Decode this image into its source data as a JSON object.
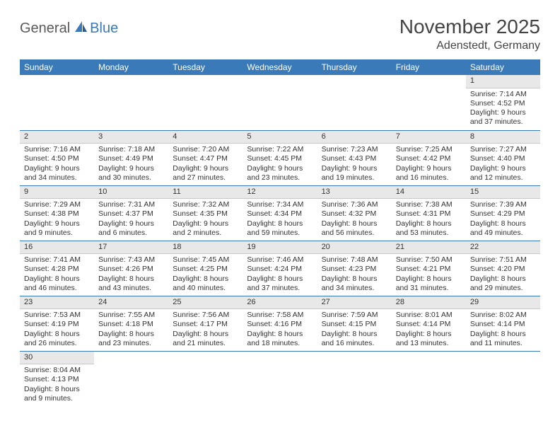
{
  "logo": {
    "text1": "General",
    "text2": "Blue"
  },
  "header": {
    "title": "November 2025",
    "location": "Adenstedt, Germany"
  },
  "colors": {
    "header_bg": "#3a7ab8",
    "header_fg": "#ffffff",
    "daynum_bg": "#e8e8e8",
    "row_border": "#3a7ab8",
    "body_text": "#333333",
    "logo_gray": "#5a5a5a",
    "logo_blue": "#3a7ab8",
    "page_bg": "#ffffff"
  },
  "typography": {
    "title_fontsize": 28,
    "location_fontsize": 16,
    "dayheader_fontsize": 12,
    "cell_fontsize": 10.5,
    "daynum_fontsize": 11
  },
  "day_names": [
    "Sunday",
    "Monday",
    "Tuesday",
    "Wednesday",
    "Thursday",
    "Friday",
    "Saturday"
  ],
  "weeks": [
    [
      null,
      null,
      null,
      null,
      null,
      null,
      {
        "n": "1",
        "sunrise": "Sunrise: 7:14 AM",
        "sunset": "Sunset: 4:52 PM",
        "daylight": "Daylight: 9 hours and 37 minutes."
      }
    ],
    [
      {
        "n": "2",
        "sunrise": "Sunrise: 7:16 AM",
        "sunset": "Sunset: 4:50 PM",
        "daylight": "Daylight: 9 hours and 34 minutes."
      },
      {
        "n": "3",
        "sunrise": "Sunrise: 7:18 AM",
        "sunset": "Sunset: 4:49 PM",
        "daylight": "Daylight: 9 hours and 30 minutes."
      },
      {
        "n": "4",
        "sunrise": "Sunrise: 7:20 AM",
        "sunset": "Sunset: 4:47 PM",
        "daylight": "Daylight: 9 hours and 27 minutes."
      },
      {
        "n": "5",
        "sunrise": "Sunrise: 7:22 AM",
        "sunset": "Sunset: 4:45 PM",
        "daylight": "Daylight: 9 hours and 23 minutes."
      },
      {
        "n": "6",
        "sunrise": "Sunrise: 7:23 AM",
        "sunset": "Sunset: 4:43 PM",
        "daylight": "Daylight: 9 hours and 19 minutes."
      },
      {
        "n": "7",
        "sunrise": "Sunrise: 7:25 AM",
        "sunset": "Sunset: 4:42 PM",
        "daylight": "Daylight: 9 hours and 16 minutes."
      },
      {
        "n": "8",
        "sunrise": "Sunrise: 7:27 AM",
        "sunset": "Sunset: 4:40 PM",
        "daylight": "Daylight: 9 hours and 12 minutes."
      }
    ],
    [
      {
        "n": "9",
        "sunrise": "Sunrise: 7:29 AM",
        "sunset": "Sunset: 4:38 PM",
        "daylight": "Daylight: 9 hours and 9 minutes."
      },
      {
        "n": "10",
        "sunrise": "Sunrise: 7:31 AM",
        "sunset": "Sunset: 4:37 PM",
        "daylight": "Daylight: 9 hours and 6 minutes."
      },
      {
        "n": "11",
        "sunrise": "Sunrise: 7:32 AM",
        "sunset": "Sunset: 4:35 PM",
        "daylight": "Daylight: 9 hours and 2 minutes."
      },
      {
        "n": "12",
        "sunrise": "Sunrise: 7:34 AM",
        "sunset": "Sunset: 4:34 PM",
        "daylight": "Daylight: 8 hours and 59 minutes."
      },
      {
        "n": "13",
        "sunrise": "Sunrise: 7:36 AM",
        "sunset": "Sunset: 4:32 PM",
        "daylight": "Daylight: 8 hours and 56 minutes."
      },
      {
        "n": "14",
        "sunrise": "Sunrise: 7:38 AM",
        "sunset": "Sunset: 4:31 PM",
        "daylight": "Daylight: 8 hours and 53 minutes."
      },
      {
        "n": "15",
        "sunrise": "Sunrise: 7:39 AM",
        "sunset": "Sunset: 4:29 PM",
        "daylight": "Daylight: 8 hours and 49 minutes."
      }
    ],
    [
      {
        "n": "16",
        "sunrise": "Sunrise: 7:41 AM",
        "sunset": "Sunset: 4:28 PM",
        "daylight": "Daylight: 8 hours and 46 minutes."
      },
      {
        "n": "17",
        "sunrise": "Sunrise: 7:43 AM",
        "sunset": "Sunset: 4:26 PM",
        "daylight": "Daylight: 8 hours and 43 minutes."
      },
      {
        "n": "18",
        "sunrise": "Sunrise: 7:45 AM",
        "sunset": "Sunset: 4:25 PM",
        "daylight": "Daylight: 8 hours and 40 minutes."
      },
      {
        "n": "19",
        "sunrise": "Sunrise: 7:46 AM",
        "sunset": "Sunset: 4:24 PM",
        "daylight": "Daylight: 8 hours and 37 minutes."
      },
      {
        "n": "20",
        "sunrise": "Sunrise: 7:48 AM",
        "sunset": "Sunset: 4:23 PM",
        "daylight": "Daylight: 8 hours and 34 minutes."
      },
      {
        "n": "21",
        "sunrise": "Sunrise: 7:50 AM",
        "sunset": "Sunset: 4:21 PM",
        "daylight": "Daylight: 8 hours and 31 minutes."
      },
      {
        "n": "22",
        "sunrise": "Sunrise: 7:51 AM",
        "sunset": "Sunset: 4:20 PM",
        "daylight": "Daylight: 8 hours and 29 minutes."
      }
    ],
    [
      {
        "n": "23",
        "sunrise": "Sunrise: 7:53 AM",
        "sunset": "Sunset: 4:19 PM",
        "daylight": "Daylight: 8 hours and 26 minutes."
      },
      {
        "n": "24",
        "sunrise": "Sunrise: 7:55 AM",
        "sunset": "Sunset: 4:18 PM",
        "daylight": "Daylight: 8 hours and 23 minutes."
      },
      {
        "n": "25",
        "sunrise": "Sunrise: 7:56 AM",
        "sunset": "Sunset: 4:17 PM",
        "daylight": "Daylight: 8 hours and 21 minutes."
      },
      {
        "n": "26",
        "sunrise": "Sunrise: 7:58 AM",
        "sunset": "Sunset: 4:16 PM",
        "daylight": "Daylight: 8 hours and 18 minutes."
      },
      {
        "n": "27",
        "sunrise": "Sunrise: 7:59 AM",
        "sunset": "Sunset: 4:15 PM",
        "daylight": "Daylight: 8 hours and 16 minutes."
      },
      {
        "n": "28",
        "sunrise": "Sunrise: 8:01 AM",
        "sunset": "Sunset: 4:14 PM",
        "daylight": "Daylight: 8 hours and 13 minutes."
      },
      {
        "n": "29",
        "sunrise": "Sunrise: 8:02 AM",
        "sunset": "Sunset: 4:14 PM",
        "daylight": "Daylight: 8 hours and 11 minutes."
      }
    ],
    [
      {
        "n": "30",
        "sunrise": "Sunrise: 8:04 AM",
        "sunset": "Sunset: 4:13 PM",
        "daylight": "Daylight: 8 hours and 9 minutes."
      },
      null,
      null,
      null,
      null,
      null,
      null
    ]
  ]
}
